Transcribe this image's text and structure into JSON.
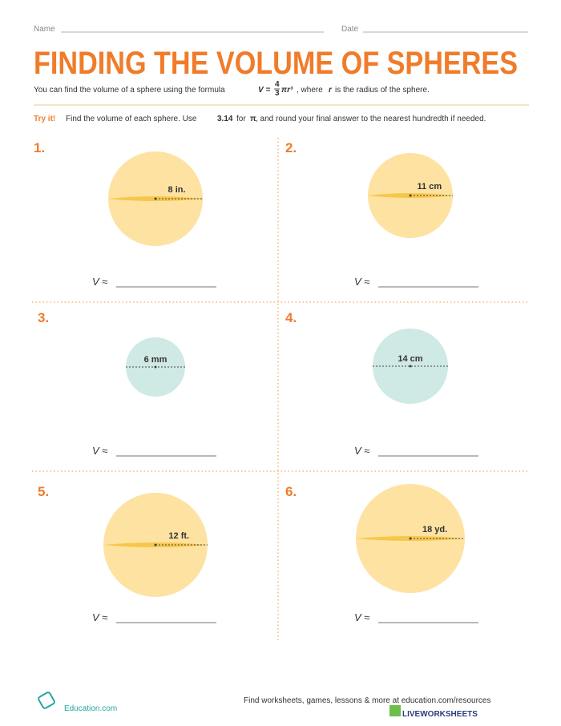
{
  "header": {
    "name_label": "Name",
    "date_label": "Date",
    "title": "FINDING THE VOLUME OF SPHERES"
  },
  "intro": {
    "before": "You can find the volume of a sphere using the formula",
    "formula_lhs": "V =",
    "numerator": "4",
    "denominator": "3",
    "formula_rhs": "πr³",
    "middle": ", where",
    "variable": "r",
    "after": "is the radius of the sphere."
  },
  "instructions": {
    "lead": "Try it!",
    "text1": "Find the volume of each sphere. Use",
    "pi_value": "3.14",
    "text2": "for",
    "pi": "π",
    "text3": ", and round your final answer to the nearest hundredth if needed."
  },
  "problems": [
    {
      "number": "1.",
      "label": "8 in.",
      "answer": "V ≈"
    },
    {
      "number": "2.",
      "label": "11 cm",
      "answer": "V ≈"
    },
    {
      "number": "3.",
      "label": "6 mm",
      "answer": "V ≈"
    },
    {
      "number": "4.",
      "label": "14 cm",
      "answer": "V ≈"
    },
    {
      "number": "5.",
      "label": "12 ft.",
      "answer": "V ≈"
    },
    {
      "number": "6.",
      "label": "18 yd.",
      "answer": "V ≈"
    }
  ],
  "footer": {
    "brand": "Education.com",
    "promo": "Find worksheets, games, lessons & more at education.com/resources",
    "watermark": "LIVEWORKSHEETS"
  }
}
